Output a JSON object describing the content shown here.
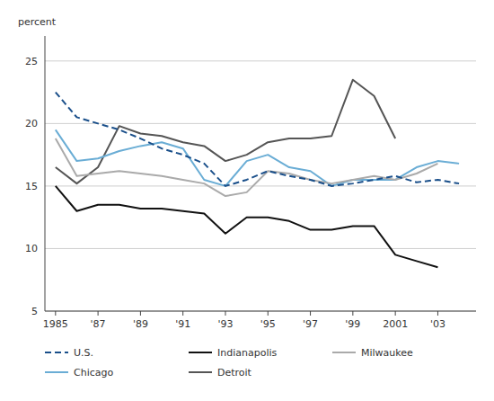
{
  "chart_data": {
    "type": "line",
    "y_label": "percent",
    "x": [
      1985,
      1986,
      1987,
      1988,
      1989,
      1990,
      1991,
      1992,
      1993,
      1994,
      1995,
      1996,
      1997,
      1998,
      1999,
      2000,
      2001,
      2002,
      2003,
      2004
    ],
    "series": [
      {
        "name": "U.S.",
        "color": "#1a4f8a",
        "line_style": "dashed",
        "values": [
          22.5,
          20.5,
          20.0,
          19.5,
          18.8,
          18.0,
          17.5,
          16.8,
          15.0,
          15.5,
          16.2,
          15.8,
          15.5,
          15.0,
          15.2,
          15.5,
          15.8,
          15.3,
          15.5,
          15.2
        ]
      },
      {
        "name": "Indianapolis",
        "color": "#111111",
        "line_style": "solid",
        "values": [
          15.0,
          13.0,
          13.5,
          13.5,
          13.2,
          13.2,
          13.0,
          12.8,
          11.2,
          12.5,
          12.5,
          12.2,
          11.5,
          11.5,
          11.8,
          11.8,
          9.5,
          9.0,
          8.5,
          null
        ]
      },
      {
        "name": "Milwaukee",
        "color": "#aaaaaa",
        "line_style": "solid",
        "values": [
          18.8,
          15.8,
          16.0,
          16.2,
          16.0,
          15.8,
          15.5,
          15.2,
          14.2,
          14.5,
          16.2,
          16.0,
          15.5,
          15.2,
          15.5,
          15.8,
          15.5,
          16.0,
          16.8,
          null
        ]
      },
      {
        "name": "Chicago",
        "color": "#6aadd5",
        "line_style": "solid",
        "values": [
          19.5,
          17.0,
          17.2,
          17.8,
          18.2,
          18.5,
          18.0,
          15.5,
          15.0,
          17.0,
          17.5,
          16.5,
          16.2,
          15.0,
          15.5,
          15.5,
          15.5,
          16.5,
          17.0,
          16.8
        ]
      },
      {
        "name": "Detroit",
        "color": "#555555",
        "line_style": "solid",
        "values": [
          16.5,
          15.2,
          16.5,
          19.8,
          19.2,
          19.0,
          18.5,
          18.2,
          17.0,
          17.5,
          18.5,
          18.8,
          18.8,
          19.0,
          23.5,
          22.2,
          18.8,
          null,
          null,
          null
        ]
      }
    ],
    "xlim": [
      1984.5,
      2004.8
    ],
    "xticks": [
      1985,
      {
        "value": 1987,
        "label": "'87"
      },
      {
        "value": 1989,
        "label": "'89"
      },
      {
        "value": 1991,
        "label": "'91"
      },
      {
        "value": 1993,
        "label": "'93"
      },
      {
        "value": 1995,
        "label": "'95"
      },
      {
        "value": 1997,
        "label": "'97"
      },
      {
        "value": 1999,
        "label": "'99"
      },
      2001,
      {
        "value": 2003,
        "label": "'03"
      }
    ],
    "ylim": [
      5,
      27
    ],
    "yticks": [
      5,
      10,
      15,
      20,
      25
    ],
    "grid": true,
    "legend": "bottom"
  }
}
